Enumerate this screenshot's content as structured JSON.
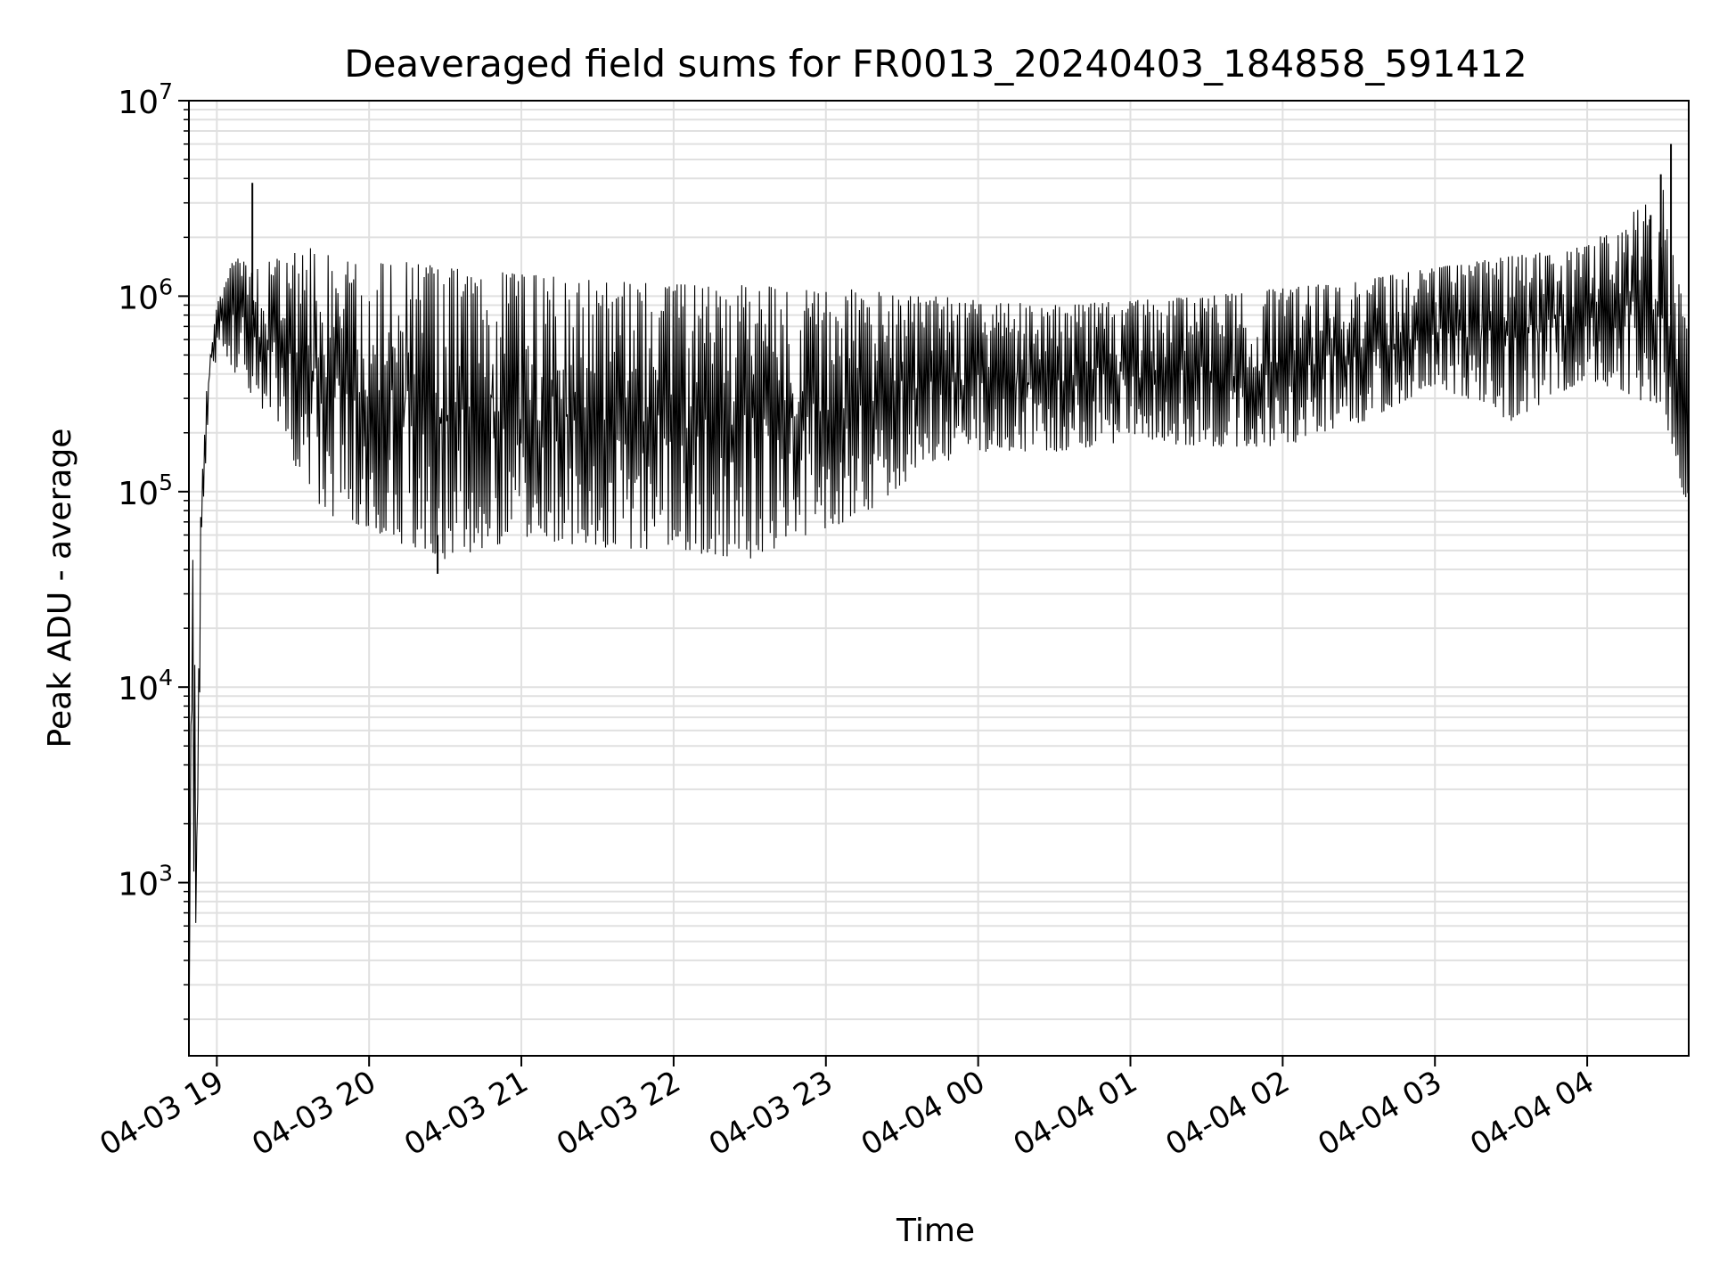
{
  "chart_data": {
    "type": "line",
    "title": "Deaveraged field sums for FR0013_20240403_184858_591412",
    "xlabel": "Time",
    "ylabel": "Peak ADU - average",
    "yscale": "log",
    "ylim": [
      130,
      10000000
    ],
    "xlim": [
      "2024-04-03 18:49",
      "2024-04-04 04:40"
    ],
    "grid": true,
    "line_color": "#000000",
    "grid_color": "#e0e0e0",
    "x_ticks": [
      {
        "value": "2024-04-03 19:00",
        "label": "04-03 19"
      },
      {
        "value": "2024-04-03 20:00",
        "label": "04-03 20"
      },
      {
        "value": "2024-04-03 21:00",
        "label": "04-03 21"
      },
      {
        "value": "2024-04-03 22:00",
        "label": "04-03 22"
      },
      {
        "value": "2024-04-03 23:00",
        "label": "04-03 23"
      },
      {
        "value": "2024-04-04 00:00",
        "label": "04-04 00"
      },
      {
        "value": "2024-04-04 01:00",
        "label": "04-04 01"
      },
      {
        "value": "2024-04-04 02:00",
        "label": "04-04 02"
      },
      {
        "value": "2024-04-04 03:00",
        "label": "04-04 03"
      },
      {
        "value": "2024-04-04 04:00",
        "label": "04-04 04"
      }
    ],
    "y_ticks": [
      {
        "value": 1000,
        "base": "10",
        "exp": "3"
      },
      {
        "value": 10000,
        "base": "10",
        "exp": "4"
      },
      {
        "value": 100000,
        "base": "10",
        "exp": "5"
      },
      {
        "value": 1000000,
        "base": "10",
        "exp": "6"
      },
      {
        "value": 10000000,
        "base": "10",
        "exp": "7"
      }
    ],
    "envelope": [
      {
        "t": "2024-04-03 18:49",
        "low": 130,
        "high": 130
      },
      {
        "t": "2024-04-03 18:50",
        "low": 15000,
        "high": 25000
      },
      {
        "t": "2024-04-03 18:51",
        "low": 220,
        "high": 78000
      },
      {
        "t": "2024-04-03 18:52",
        "low": 400,
        "high": 3800
      },
      {
        "t": "2024-04-03 18:54",
        "low": 60000,
        "high": 150000
      },
      {
        "t": "2024-04-03 18:57",
        "low": 300000,
        "high": 600000
      },
      {
        "t": "2024-04-03 19:01",
        "low": 600000,
        "high": 1000000
      },
      {
        "t": "2024-04-03 19:07",
        "low": 400000,
        "high": 1600000
      },
      {
        "t": "2024-04-03 19:15",
        "low": 300000,
        "high": 1400000
      },
      {
        "t": "2024-04-03 19:25",
        "low": 200000,
        "high": 1600000
      },
      {
        "t": "2024-04-03 19:35",
        "low": 100000,
        "high": 1800000
      },
      {
        "t": "2024-04-03 19:45",
        "low": 75000,
        "high": 1600000
      },
      {
        "t": "2024-04-03 20:00",
        "low": 65000,
        "high": 1500000
      },
      {
        "t": "2024-04-03 20:15",
        "low": 52000,
        "high": 1500000
      },
      {
        "t": "2024-04-03 20:30",
        "low": 45000,
        "high": 1400000
      },
      {
        "t": "2024-04-03 21:00",
        "low": 58000,
        "high": 1300000
      },
      {
        "t": "2024-04-03 21:30",
        "low": 52000,
        "high": 1200000
      },
      {
        "t": "2024-04-03 22:00",
        "low": 50000,
        "high": 1150000
      },
      {
        "t": "2024-04-03 22:30",
        "low": 45000,
        "high": 1150000
      },
      {
        "t": "2024-04-03 22:45",
        "low": 55000,
        "high": 1100000
      },
      {
        "t": "2024-04-03 23:00",
        "low": 65000,
        "high": 1050000
      },
      {
        "t": "2024-04-03 23:15",
        "low": 75000,
        "high": 1100000
      },
      {
        "t": "2024-04-03 23:30",
        "low": 110000,
        "high": 1000000
      },
      {
        "t": "2024-04-03 23:45",
        "low": 140000,
        "high": 1000000
      },
      {
        "t": "2024-04-04 00:00",
        "low": 160000,
        "high": 950000
      },
      {
        "t": "2024-04-04 00:30",
        "low": 160000,
        "high": 900000
      },
      {
        "t": "2024-04-04 01:00",
        "low": 180000,
        "high": 950000
      },
      {
        "t": "2024-04-04 01:30",
        "low": 170000,
        "high": 1000000
      },
      {
        "t": "2024-04-04 02:00",
        "low": 170000,
        "high": 1100000
      },
      {
        "t": "2024-04-04 02:30",
        "low": 220000,
        "high": 1200000
      },
      {
        "t": "2024-04-04 03:00",
        "low": 350000,
        "high": 1400000
      },
      {
        "t": "2024-04-04 03:30",
        "low": 230000,
        "high": 1600000
      },
      {
        "t": "2024-04-04 04:00",
        "low": 380000,
        "high": 1800000
      },
      {
        "t": "2024-04-04 04:30",
        "low": 260000,
        "high": 3500000
      },
      {
        "t": "2024-04-04 04:40",
        "low": 75000,
        "high": 600000
      }
    ],
    "spikes": [
      {
        "t": "2024-04-03 19:14",
        "value": 3800000
      },
      {
        "t": "2024-04-04 04:33",
        "value": 6000000
      },
      {
        "t": "2024-04-04 04:29",
        "value": 4200000
      },
      {
        "t": "2024-04-04 04:25",
        "value": 2600000
      },
      {
        "t": "2024-04-03 20:27",
        "value": 38000
      }
    ]
  }
}
